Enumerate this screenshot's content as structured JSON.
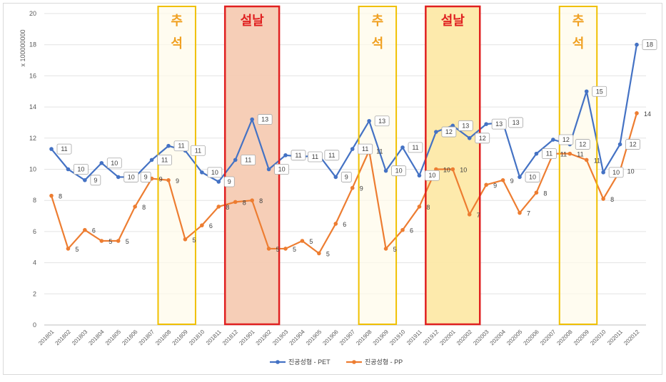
{
  "chart_data": {
    "type": "line",
    "title": "",
    "xlabel": "",
    "ylabel": "x 100000000",
    "ylim": [
      0,
      20
    ],
    "yticks": [
      0,
      2,
      4,
      6,
      8,
      10,
      12,
      14,
      16,
      18,
      20
    ],
    "grid": true,
    "legend_position": "bottom",
    "categories": [
      "201801",
      "201802",
      "201803",
      "201804",
      "201805",
      "201806",
      "201807",
      "201808",
      "201809",
      "201810",
      "201811",
      "201812",
      "201901",
      "201902",
      "201903",
      "201904",
      "201905",
      "201906",
      "201907",
      "201908",
      "201909",
      "201910",
      "201911",
      "201912",
      "202001",
      "202002",
      "202003",
      "202004",
      "202005",
      "202006",
      "202007",
      "202008",
      "202009",
      "202010",
      "202011",
      "202012"
    ],
    "series": [
      {
        "name": "진공성형 - PET",
        "color": "#4472c4",
        "values": [
          11.3,
          10.0,
          9.3,
          10.4,
          9.5,
          9.5,
          10.6,
          11.5,
          11.2,
          9.8,
          9.2,
          10.6,
          13.2,
          10.0,
          10.9,
          10.8,
          10.9,
          9.5,
          11.3,
          13.1,
          9.9,
          11.4,
          9.6,
          12.4,
          12.8,
          12.0,
          12.9,
          13.0,
          9.5,
          11.0,
          11.9,
          11.6,
          15.0,
          9.8,
          11.6,
          18.0
        ],
        "labels": [
          "11",
          "10",
          "9",
          "10",
          "10",
          "9",
          "11",
          "11",
          "11",
          "10",
          "9",
          "11",
          "13",
          "10",
          "11",
          "11",
          "11",
          "9",
          "11",
          "13",
          "10",
          "11",
          "10",
          "12",
          "13",
          "12",
          "13",
          "13",
          "10",
          "11",
          "12",
          "12",
          "15",
          "10",
          "12",
          "18"
        ]
      },
      {
        "name": "진공성형 - PP",
        "color": "#ed7d31",
        "values": [
          8.3,
          4.9,
          6.1,
          5.4,
          5.4,
          7.6,
          9.4,
          9.3,
          5.5,
          6.4,
          7.6,
          7.9,
          8.0,
          4.9,
          4.9,
          5.4,
          4.6,
          6.5,
          8.8,
          11.2,
          4.9,
          6.1,
          7.6,
          10.0,
          10.0,
          7.1,
          9.0,
          9.3,
          7.2,
          8.5,
          11.0,
          11.0,
          10.6,
          8.1,
          9.9,
          13.6
        ],
        "labels": [
          "8",
          "5",
          "6",
          "5",
          "5",
          "8",
          "9",
          "9",
          "5",
          "6",
          "8",
          "8",
          "8",
          "5",
          "5",
          "5",
          "5",
          "6",
          "9",
          "11",
          "5",
          "6",
          "8",
          "10",
          "10",
          "7",
          "9",
          "9",
          "7",
          "8",
          "11",
          "11",
          "11",
          "8",
          "10",
          "14"
        ]
      }
    ],
    "highlights": [
      {
        "kind": "chuseok",
        "text": [
          "추",
          "석"
        ],
        "range": [
          "201808",
          "201809"
        ],
        "fill": "#fffbea",
        "stroke": "#f0c000",
        "text_color": "#f0a020"
      },
      {
        "kind": "seollal",
        "text": [
          "설날"
        ],
        "range": [
          "201812",
          "201902"
        ],
        "fill": "#f6cbb3",
        "stroke": "#e02020",
        "text_color": "#e02020"
      },
      {
        "kind": "chuseok",
        "text": [
          "추",
          "석"
        ],
        "range": [
          "201908",
          "201909"
        ],
        "fill": "#fffbea",
        "stroke": "#f0c000",
        "text_color": "#f0a020"
      },
      {
        "kind": "seollal",
        "text": [
          "설날"
        ],
        "range": [
          "201912",
          "202002"
        ],
        "fill": "#fde9a8",
        "stroke": "#e02020",
        "text_color": "#e02020"
      },
      {
        "kind": "chuseok",
        "text": [
          "추",
          "석"
        ],
        "range": [
          "202008",
          "202009"
        ],
        "fill": "#fffbea",
        "stroke": "#f0c000",
        "text_color": "#f0a020"
      }
    ]
  }
}
